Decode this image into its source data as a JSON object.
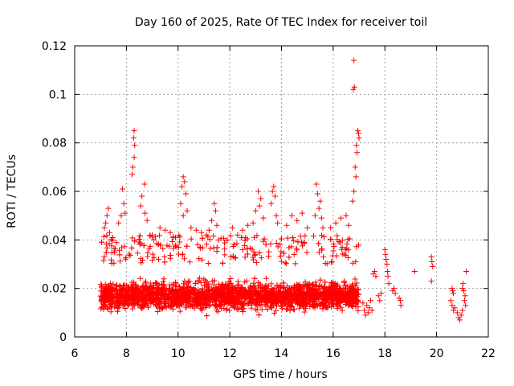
{
  "chart_data": {
    "type": "scatter",
    "title": "Day 160 of 2025, Rate Of TEC Index for receiver toil",
    "xlabel": "GPS time / hours",
    "ylabel": "ROTI / TECUs",
    "xlim": [
      6,
      22
    ],
    "ylim": [
      0,
      0.12
    ],
    "grid": true,
    "x_ticks": [
      6,
      8,
      10,
      12,
      14,
      16,
      18,
      20,
      22
    ],
    "x_tick_labels": [
      "6",
      "8",
      "10",
      "12",
      "14",
      "16",
      "18",
      "20",
      "22"
    ],
    "y_ticks": [
      0,
      0.02,
      0.04,
      0.06,
      0.08,
      0.1,
      0.12
    ],
    "y_tick_labels": [
      "0",
      "0.02",
      "0.04",
      "0.06",
      "0.08",
      "0.1",
      "0.12"
    ],
    "marker": "plus",
    "color": "#ff0000",
    "series": [
      {
        "name": "ROTI",
        "points": [
          [
            16.8,
            0.114
          ],
          [
            16.82,
            0.103
          ],
          [
            16.78,
            0.102
          ],
          [
            16.95,
            0.085
          ],
          [
            16.98,
            0.084
          ],
          [
            17.0,
            0.082
          ],
          [
            16.9,
            0.079
          ],
          [
            16.92,
            0.076
          ],
          [
            16.85,
            0.07
          ],
          [
            16.88,
            0.066
          ],
          [
            16.8,
            0.06
          ],
          [
            16.75,
            0.056
          ],
          [
            8.3,
            0.085
          ],
          [
            8.28,
            0.082
          ],
          [
            8.32,
            0.079
          ],
          [
            8.3,
            0.074
          ],
          [
            8.25,
            0.07
          ],
          [
            8.22,
            0.067
          ],
          [
            8.7,
            0.063
          ],
          [
            8.6,
            0.058
          ],
          [
            8.55,
            0.054
          ],
          [
            8.72,
            0.051
          ],
          [
            8.8,
            0.048
          ],
          [
            7.85,
            0.061
          ],
          [
            7.9,
            0.055
          ],
          [
            7.95,
            0.051
          ],
          [
            7.8,
            0.05
          ],
          [
            7.7,
            0.047
          ],
          [
            7.3,
            0.053
          ],
          [
            7.25,
            0.05
          ],
          [
            7.2,
            0.047
          ],
          [
            7.15,
            0.045
          ],
          [
            7.35,
            0.043
          ],
          [
            10.2,
            0.066
          ],
          [
            10.25,
            0.064
          ],
          [
            10.15,
            0.062
          ],
          [
            10.3,
            0.059
          ],
          [
            10.1,
            0.055
          ],
          [
            10.35,
            0.052
          ],
          [
            10.2,
            0.05
          ],
          [
            10.5,
            0.045
          ],
          [
            10.7,
            0.044
          ],
          [
            10.9,
            0.043
          ],
          [
            11.1,
            0.042
          ],
          [
            9.3,
            0.045
          ],
          [
            9.5,
            0.044
          ],
          [
            9.7,
            0.043
          ],
          [
            9.0,
            0.042
          ],
          [
            9.9,
            0.041
          ],
          [
            11.4,
            0.055
          ],
          [
            11.45,
            0.052
          ],
          [
            11.3,
            0.048
          ],
          [
            11.5,
            0.046
          ],
          [
            11.2,
            0.044
          ],
          [
            12.1,
            0.045
          ],
          [
            12.3,
            0.042
          ],
          [
            12.5,
            0.044
          ],
          [
            12.7,
            0.046
          ],
          [
            12.6,
            0.041
          ],
          [
            13.1,
            0.06
          ],
          [
            13.2,
            0.057
          ],
          [
            13.15,
            0.054
          ],
          [
            13.0,
            0.052
          ],
          [
            13.3,
            0.049
          ],
          [
            12.9,
            0.047
          ],
          [
            13.7,
            0.062
          ],
          [
            13.65,
            0.06
          ],
          [
            13.75,
            0.058
          ],
          [
            13.6,
            0.055
          ],
          [
            13.8,
            0.05
          ],
          [
            13.85,
            0.047
          ],
          [
            14.2,
            0.046
          ],
          [
            14.4,
            0.05
          ],
          [
            14.6,
            0.048
          ],
          [
            14.8,
            0.051
          ],
          [
            15.0,
            0.045
          ],
          [
            15.35,
            0.063
          ],
          [
            15.4,
            0.059
          ],
          [
            15.5,
            0.056
          ],
          [
            15.45,
            0.053
          ],
          [
            15.3,
            0.05
          ],
          [
            15.55,
            0.049
          ],
          [
            15.6,
            0.045
          ],
          [
            15.9,
            0.045
          ],
          [
            16.1,
            0.047
          ],
          [
            16.3,
            0.049
          ],
          [
            16.5,
            0.05
          ],
          [
            16.6,
            0.046
          ],
          [
            17.15,
            0.014
          ],
          [
            17.2,
            0.011
          ],
          [
            17.25,
            0.009
          ],
          [
            17.3,
            0.013
          ],
          [
            17.35,
            0.01
          ],
          [
            17.4,
            0.012
          ],
          [
            17.45,
            0.015
          ],
          [
            17.5,
            0.011
          ],
          [
            17.55,
            0.026
          ],
          [
            17.6,
            0.027
          ],
          [
            17.65,
            0.025
          ],
          [
            17.75,
            0.017
          ],
          [
            17.8,
            0.015
          ],
          [
            17.85,
            0.018
          ],
          [
            18.0,
            0.036
          ],
          [
            18.02,
            0.034
          ],
          [
            18.05,
            0.032
          ],
          [
            18.08,
            0.03
          ],
          [
            18.1,
            0.027
          ],
          [
            18.12,
            0.025
          ],
          [
            18.15,
            0.022
          ],
          [
            18.3,
            0.019
          ],
          [
            18.35,
            0.02
          ],
          [
            18.4,
            0.018
          ],
          [
            18.55,
            0.016
          ],
          [
            18.6,
            0.015
          ],
          [
            18.62,
            0.013
          ],
          [
            19.15,
            0.027
          ],
          [
            19.8,
            0.033
          ],
          [
            19.82,
            0.031
          ],
          [
            19.85,
            0.029
          ],
          [
            19.8,
            0.023
          ],
          [
            20.6,
            0.02
          ],
          [
            20.62,
            0.019
          ],
          [
            20.65,
            0.018
          ],
          [
            20.55,
            0.015
          ],
          [
            20.6,
            0.013
          ],
          [
            20.7,
            0.012
          ],
          [
            20.65,
            0.011
          ],
          [
            20.8,
            0.01
          ],
          [
            20.85,
            0.008
          ],
          [
            20.9,
            0.007
          ],
          [
            20.95,
            0.009
          ],
          [
            21.0,
            0.02
          ],
          [
            21.02,
            0.022
          ],
          [
            21.05,
            0.019
          ],
          [
            21.1,
            0.017
          ],
          [
            21.08,
            0.015
          ],
          [
            21.12,
            0.013
          ],
          [
            21.15,
            0.027
          ],
          [
            21.0,
            0.011
          ]
        ],
        "dense_band": {
          "x_range": [
            7.0,
            17.0
          ],
          "y_range": [
            0.004,
            0.032
          ]
        }
      }
    ]
  }
}
